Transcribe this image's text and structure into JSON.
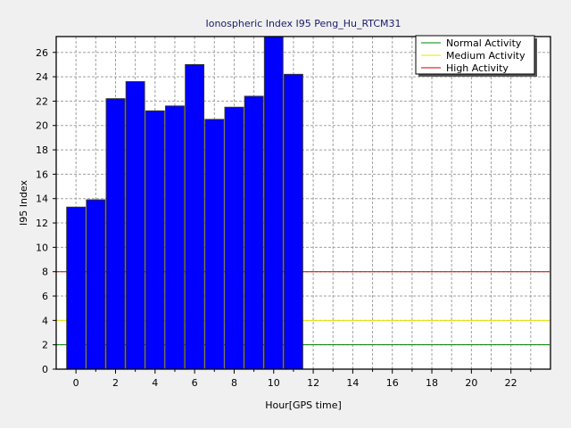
{
  "chart_data": {
    "type": "bar",
    "title": "Ionospheric Index I95 Peng_Hu_RTCM31",
    "xlabel": "Hour[GPS time]",
    "ylabel": "I95 Index",
    "x": [
      0,
      1,
      2,
      3,
      4,
      5,
      6,
      7,
      8,
      9,
      10,
      11
    ],
    "values": [
      13.3,
      13.9,
      22.2,
      23.6,
      21.2,
      21.6,
      25.0,
      20.5,
      21.5,
      22.4,
      27.5,
      24.2
    ],
    "xlim": [
      -1,
      24
    ],
    "ylim": [
      0,
      27.3
    ],
    "xticks": [
      0,
      2,
      4,
      6,
      8,
      10,
      12,
      14,
      16,
      18,
      20,
      22
    ],
    "yticks": [
      0,
      2,
      4,
      6,
      8,
      10,
      12,
      14,
      16,
      18,
      20,
      22,
      24,
      26
    ],
    "bar_color": "#0000ff",
    "grid": true,
    "legend_position": "top-right",
    "thresholds": [
      {
        "name": "Normal Activity",
        "value": 2,
        "color": "#008000"
      },
      {
        "name": "Medium Activity",
        "value": 4,
        "color": "#e6e600"
      },
      {
        "name": "High Activity",
        "value": 8,
        "color": "#cc0000"
      }
    ],
    "threshold_x_range": [
      -1,
      23.95
    ]
  }
}
